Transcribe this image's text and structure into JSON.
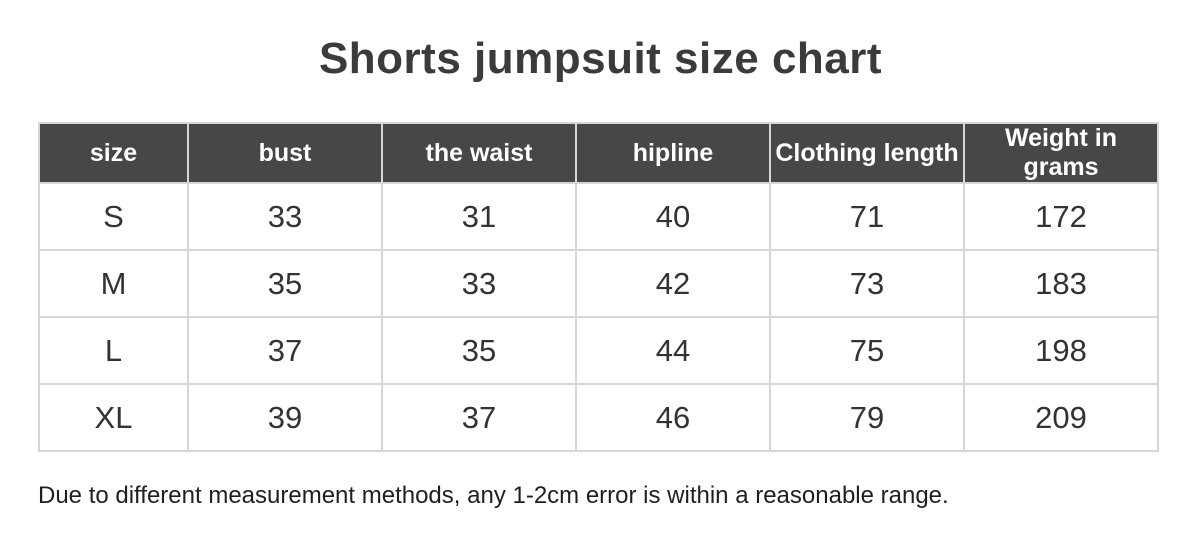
{
  "title": "Shorts jumpsuit size chart",
  "table": {
    "columns": [
      "size",
      "bust",
      "the waist",
      "hipline",
      "Clothing length",
      "Weight in grams"
    ],
    "rows": [
      [
        "S",
        "33",
        "31",
        "40",
        "71",
        "172"
      ],
      [
        "M",
        "35",
        "33",
        "42",
        "73",
        "183"
      ],
      [
        "L",
        "37",
        "35",
        "44",
        "75",
        "198"
      ],
      [
        "XL",
        "39",
        "37",
        "46",
        "79",
        "209"
      ]
    ]
  },
  "footnote": "Due to different measurement methods, any 1-2cm error is within a reasonable range.",
  "colors": {
    "header_background": "#474747",
    "header_text": "#ffffff",
    "body_text": "#333333",
    "grid_line": "#d6d6d6",
    "title_text": "#3b3b3b"
  }
}
